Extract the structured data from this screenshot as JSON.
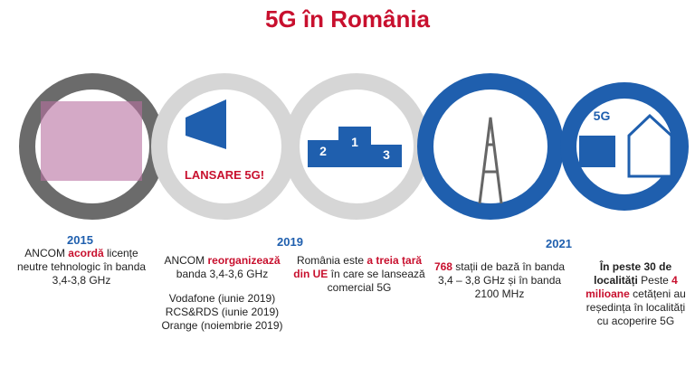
{
  "title": "5G în România",
  "stages": [
    {
      "year": "2015",
      "paragraphs": [
        [
          {
            "text": "ANCOM ",
            "bold": false
          },
          {
            "text": "acordă",
            "bold": true
          },
          {
            "text": " licențe neutre tehnologic în banda 3,4-3,8 GHz",
            "bold": false
          }
        ]
      ]
    },
    {
      "year": "2019",
      "icon_label": "LANSARE 5G!",
      "paragraphs": [
        [
          {
            "text": "ANCOM ",
            "bold": false
          },
          {
            "text": "reorganizează",
            "bold": true
          },
          {
            "text": " banda 3,4-3,6 GHz",
            "bold": false
          }
        ],
        [
          {
            "text": "Vodafone (iunie 2019)",
            "bold": false
          }
        ],
        [
          {
            "text": "RCS&RDS (iunie 2019)",
            "bold": false
          }
        ],
        [
          {
            "text": "Orange (noiembrie 2019)",
            "bold": false
          }
        ]
      ]
    },
    {
      "podium": [
        "2",
        "1",
        "3"
      ],
      "paragraphs": [
        [
          {
            "text": "România este ",
            "bold": false
          },
          {
            "text": "a treia țară din UE",
            "bold": true
          },
          {
            "text": " în care se lansează comercial 5G",
            "bold": false
          }
        ]
      ]
    },
    {
      "year": "2021",
      "paragraphs": [
        [
          {
            "text": "768",
            "bold": true
          },
          {
            "text": " stații de bază în banda 3,4 – 3,8 GHz și în banda 2100 MHz",
            "bold": false
          }
        ]
      ]
    },
    {
      "icon_label": "5G",
      "paragraphs": [
        [
          {
            "text": "În peste 30 de localități",
            "bold": true
          },
          {
            "text": " Peste ",
            "bold": false
          },
          {
            "text": "4 milioane",
            "bold": true
          },
          {
            "text": " cetățeni au reședința în localități cu acoperire 5G",
            "bold": false
          }
        ]
      ]
    }
  ]
}
